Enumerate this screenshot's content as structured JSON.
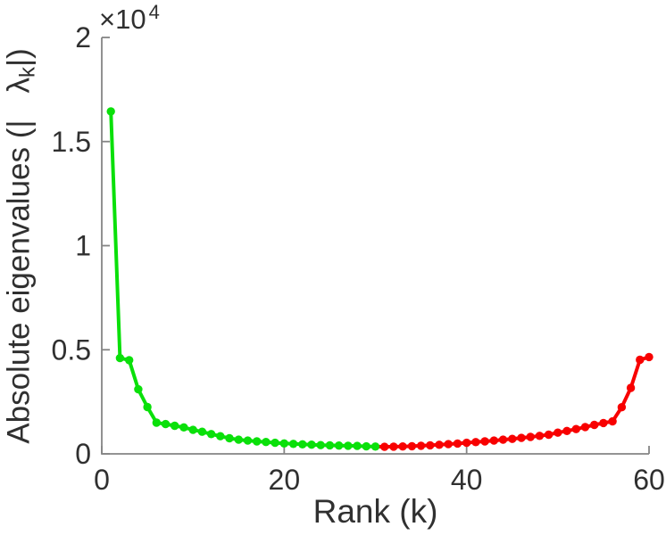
{
  "chart_data": {
    "type": "line",
    "title": "",
    "xlabel": "Rank (k)",
    "ylabel": {
      "prefix": "Absolute eigenvalues (|",
      "lambda": "λ",
      "subscript": "k",
      "suffix": "|)"
    },
    "y_axis_exponent": {
      "base": "×10",
      "power": "4"
    },
    "xlim": [
      0,
      60
    ],
    "ylim": [
      0,
      20000
    ],
    "x_ticks": [
      0,
      20,
      40,
      60
    ],
    "y_ticks": [
      0,
      0.5,
      1,
      1.5,
      2
    ],
    "y_tick_scale": 10000,
    "grid": false,
    "legend": null,
    "axis_color": "#858585",
    "label_color": "#303030",
    "series": [
      {
        "name": "leading-eigenvalues-green",
        "color": "#0ae00a",
        "x": [
          1,
          2,
          3,
          4,
          5,
          6,
          7,
          8,
          9,
          10,
          11,
          12,
          13,
          14,
          15,
          16,
          17,
          18,
          19,
          20,
          21,
          22,
          23,
          24,
          25,
          26,
          27,
          28,
          29,
          30
        ],
        "values": [
          16450,
          4600,
          4500,
          3100,
          2250,
          1500,
          1430,
          1350,
          1270,
          1150,
          1060,
          950,
          850,
          750,
          680,
          640,
          600,
          570,
          530,
          500,
          480,
          460,
          440,
          420,
          410,
          400,
          390,
          380,
          360,
          350
        ]
      },
      {
        "name": "trailing-eigenvalues-red",
        "color": "#f80000",
        "x": [
          31,
          32,
          33,
          34,
          35,
          36,
          37,
          38,
          39,
          40,
          41,
          42,
          43,
          44,
          45,
          46,
          47,
          48,
          49,
          50,
          51,
          52,
          53,
          54,
          55,
          56,
          57,
          58,
          59,
          60
        ],
        "values": [
          340,
          345,
          355,
          370,
          390,
          410,
          435,
          465,
          495,
          530,
          565,
          600,
          640,
          680,
          720,
          765,
          815,
          865,
          920,
          1020,
          1100,
          1190,
          1290,
          1390,
          1480,
          1560,
          2240,
          3170,
          4520,
          4650
        ]
      }
    ]
  }
}
